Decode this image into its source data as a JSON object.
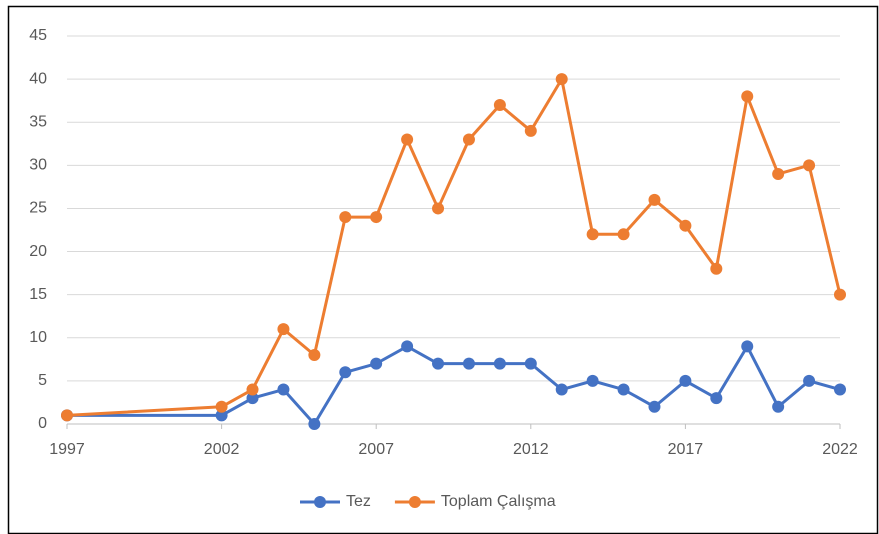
{
  "chart_data": {
    "type": "line",
    "x": [
      1997,
      2002,
      2003,
      2004,
      2005,
      2006,
      2007,
      2008,
      2009,
      2010,
      2011,
      2012,
      2013,
      2014,
      2015,
      2016,
      2017,
      2018,
      2019,
      2020,
      2021,
      2022
    ],
    "series": [
      {
        "name": "Tez",
        "color": "#4472c4",
        "values": [
          1,
          1,
          3,
          4,
          0,
          6,
          7,
          9,
          7,
          7,
          7,
          7,
          4,
          5,
          4,
          2,
          5,
          3,
          9,
          2,
          5,
          4
        ]
      },
      {
        "name": "Toplam Çalışma",
        "color": "#ed7d31",
        "values": [
          1,
          2,
          4,
          11,
          8,
          24,
          24,
          33,
          25,
          33,
          37,
          34,
          40,
          22,
          22,
          26,
          23,
          18,
          38,
          29,
          30,
          15
        ]
      }
    ],
    "xlim": [
      1997,
      2022
    ],
    "xticks": [
      1997,
      2002,
      2007,
      2012,
      2017,
      2022
    ],
    "ylim": [
      0,
      45
    ],
    "yticks": [
      0,
      5,
      10,
      15,
      20,
      25,
      30,
      35,
      40,
      45
    ],
    "grid": true,
    "legend": "bottom"
  }
}
